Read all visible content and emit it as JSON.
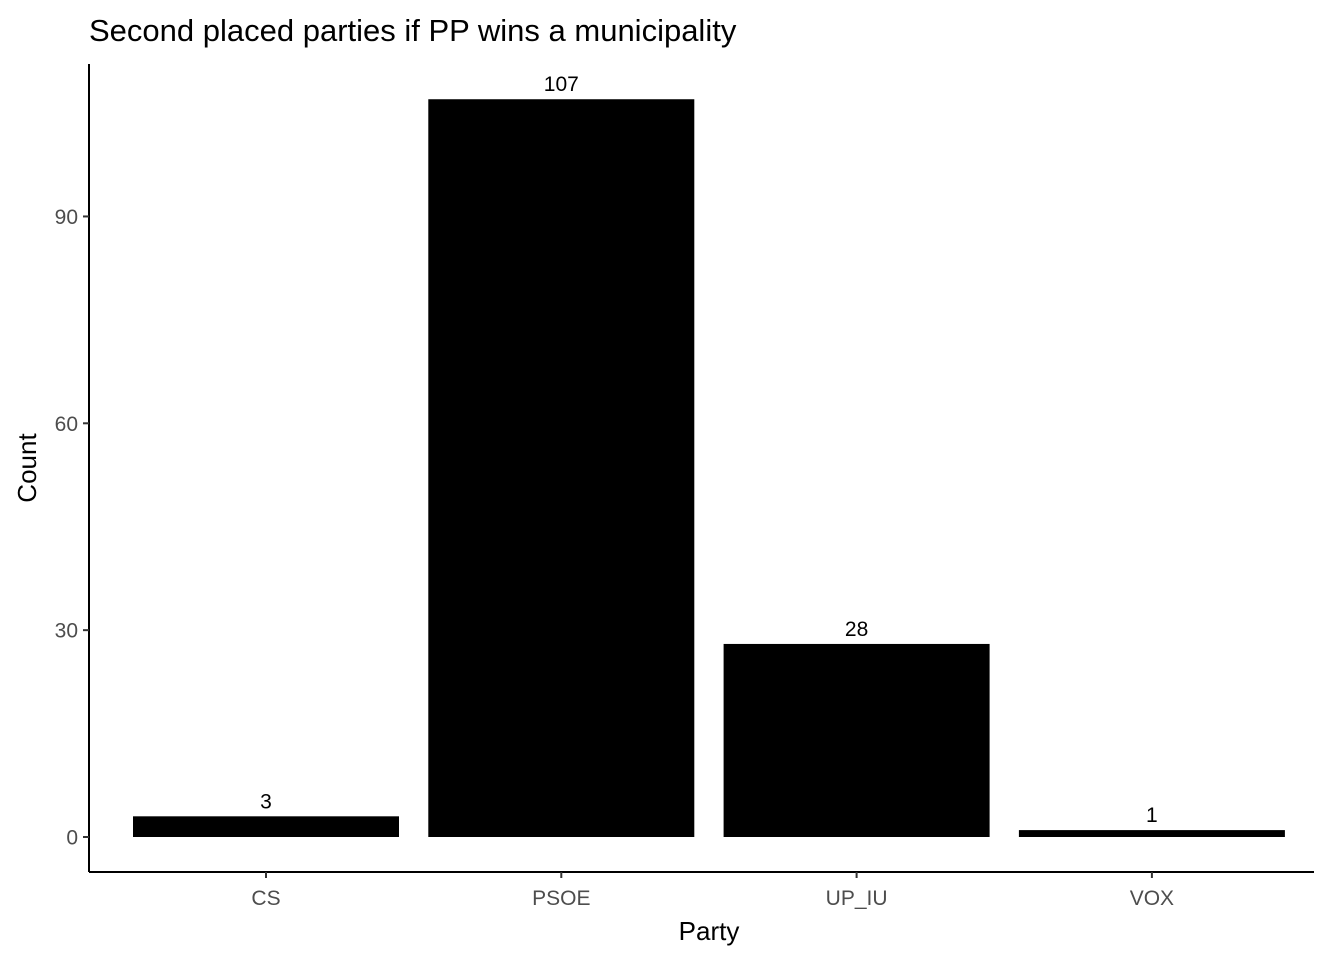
{
  "chart_data": {
    "type": "bar",
    "title": "Second placed parties if PP wins a municipality",
    "xlabel": "Party",
    "ylabel": "Count",
    "categories": [
      "CS",
      "PSOE",
      "UP_IU",
      "VOX"
    ],
    "values": [
      3,
      107,
      28,
      1
    ],
    "data_labels": [
      "3",
      "107",
      "28",
      "1"
    ],
    "yticks": [
      0,
      30,
      60,
      90
    ],
    "ytick_labels": [
      "0",
      "30",
      "60",
      "90"
    ],
    "ylim": [
      -5.3,
      112.3
    ],
    "bar_color": "#000000",
    "grid": false,
    "legend": "none"
  }
}
